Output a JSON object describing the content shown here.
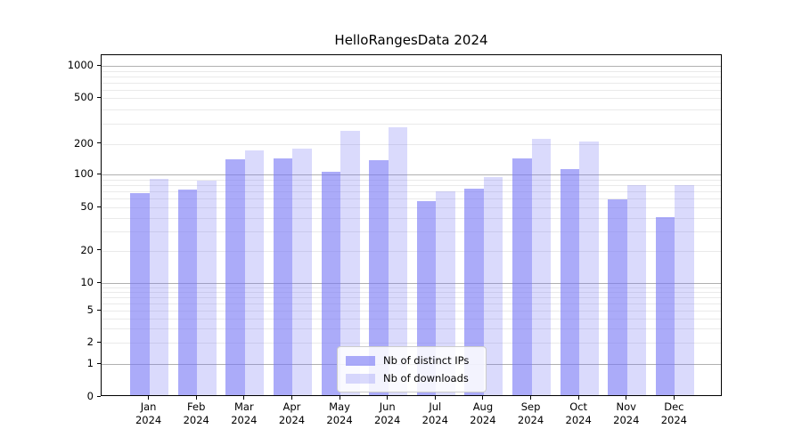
{
  "title": "HelloRangesData 2024",
  "colors": {
    "ips": "rgba(120,120,245,0.62)",
    "downloads": "rgba(120,120,245,0.27)",
    "major_grid": "#b0b0b0",
    "minor_grid": "#eaeaea",
    "axis": "#000000",
    "legend_border": "#cccccc"
  },
  "legend": {
    "items": [
      {
        "label": "Nb of distinct IPs",
        "series": "ips"
      },
      {
        "label": "Nb of downloads",
        "series": "downloads"
      }
    ]
  },
  "chart_data": {
    "type": "bar",
    "title": "HelloRangesData 2024",
    "categories": [
      "Jan 2024",
      "Feb 2024",
      "Mar 2024",
      "Apr 2024",
      "May 2024",
      "Jun 2024",
      "Jul 2024",
      "Aug 2024",
      "Sep 2024",
      "Oct 2024",
      "Nov 2024",
      "Dec 2024"
    ],
    "series": [
      {
        "name": "Nb of distinct IPs",
        "values": [
          65,
          70,
          136,
          140,
          102,
          134,
          55,
          72,
          138,
          110,
          57,
          39
        ]
      },
      {
        "name": "Nb of downloads",
        "values": [
          88,
          85,
          166,
          172,
          250,
          270,
          68,
          92,
          215,
          201,
          78,
          78
        ]
      }
    ],
    "xlabel": "",
    "ylabel": "",
    "yscale": "symlog",
    "yticks": [
      0,
      1,
      2,
      5,
      10,
      20,
      50,
      100,
      200,
      500,
      1000
    ],
    "ylim": [
      0,
      1260
    ],
    "grid": true,
    "legend_position": "lower center"
  }
}
